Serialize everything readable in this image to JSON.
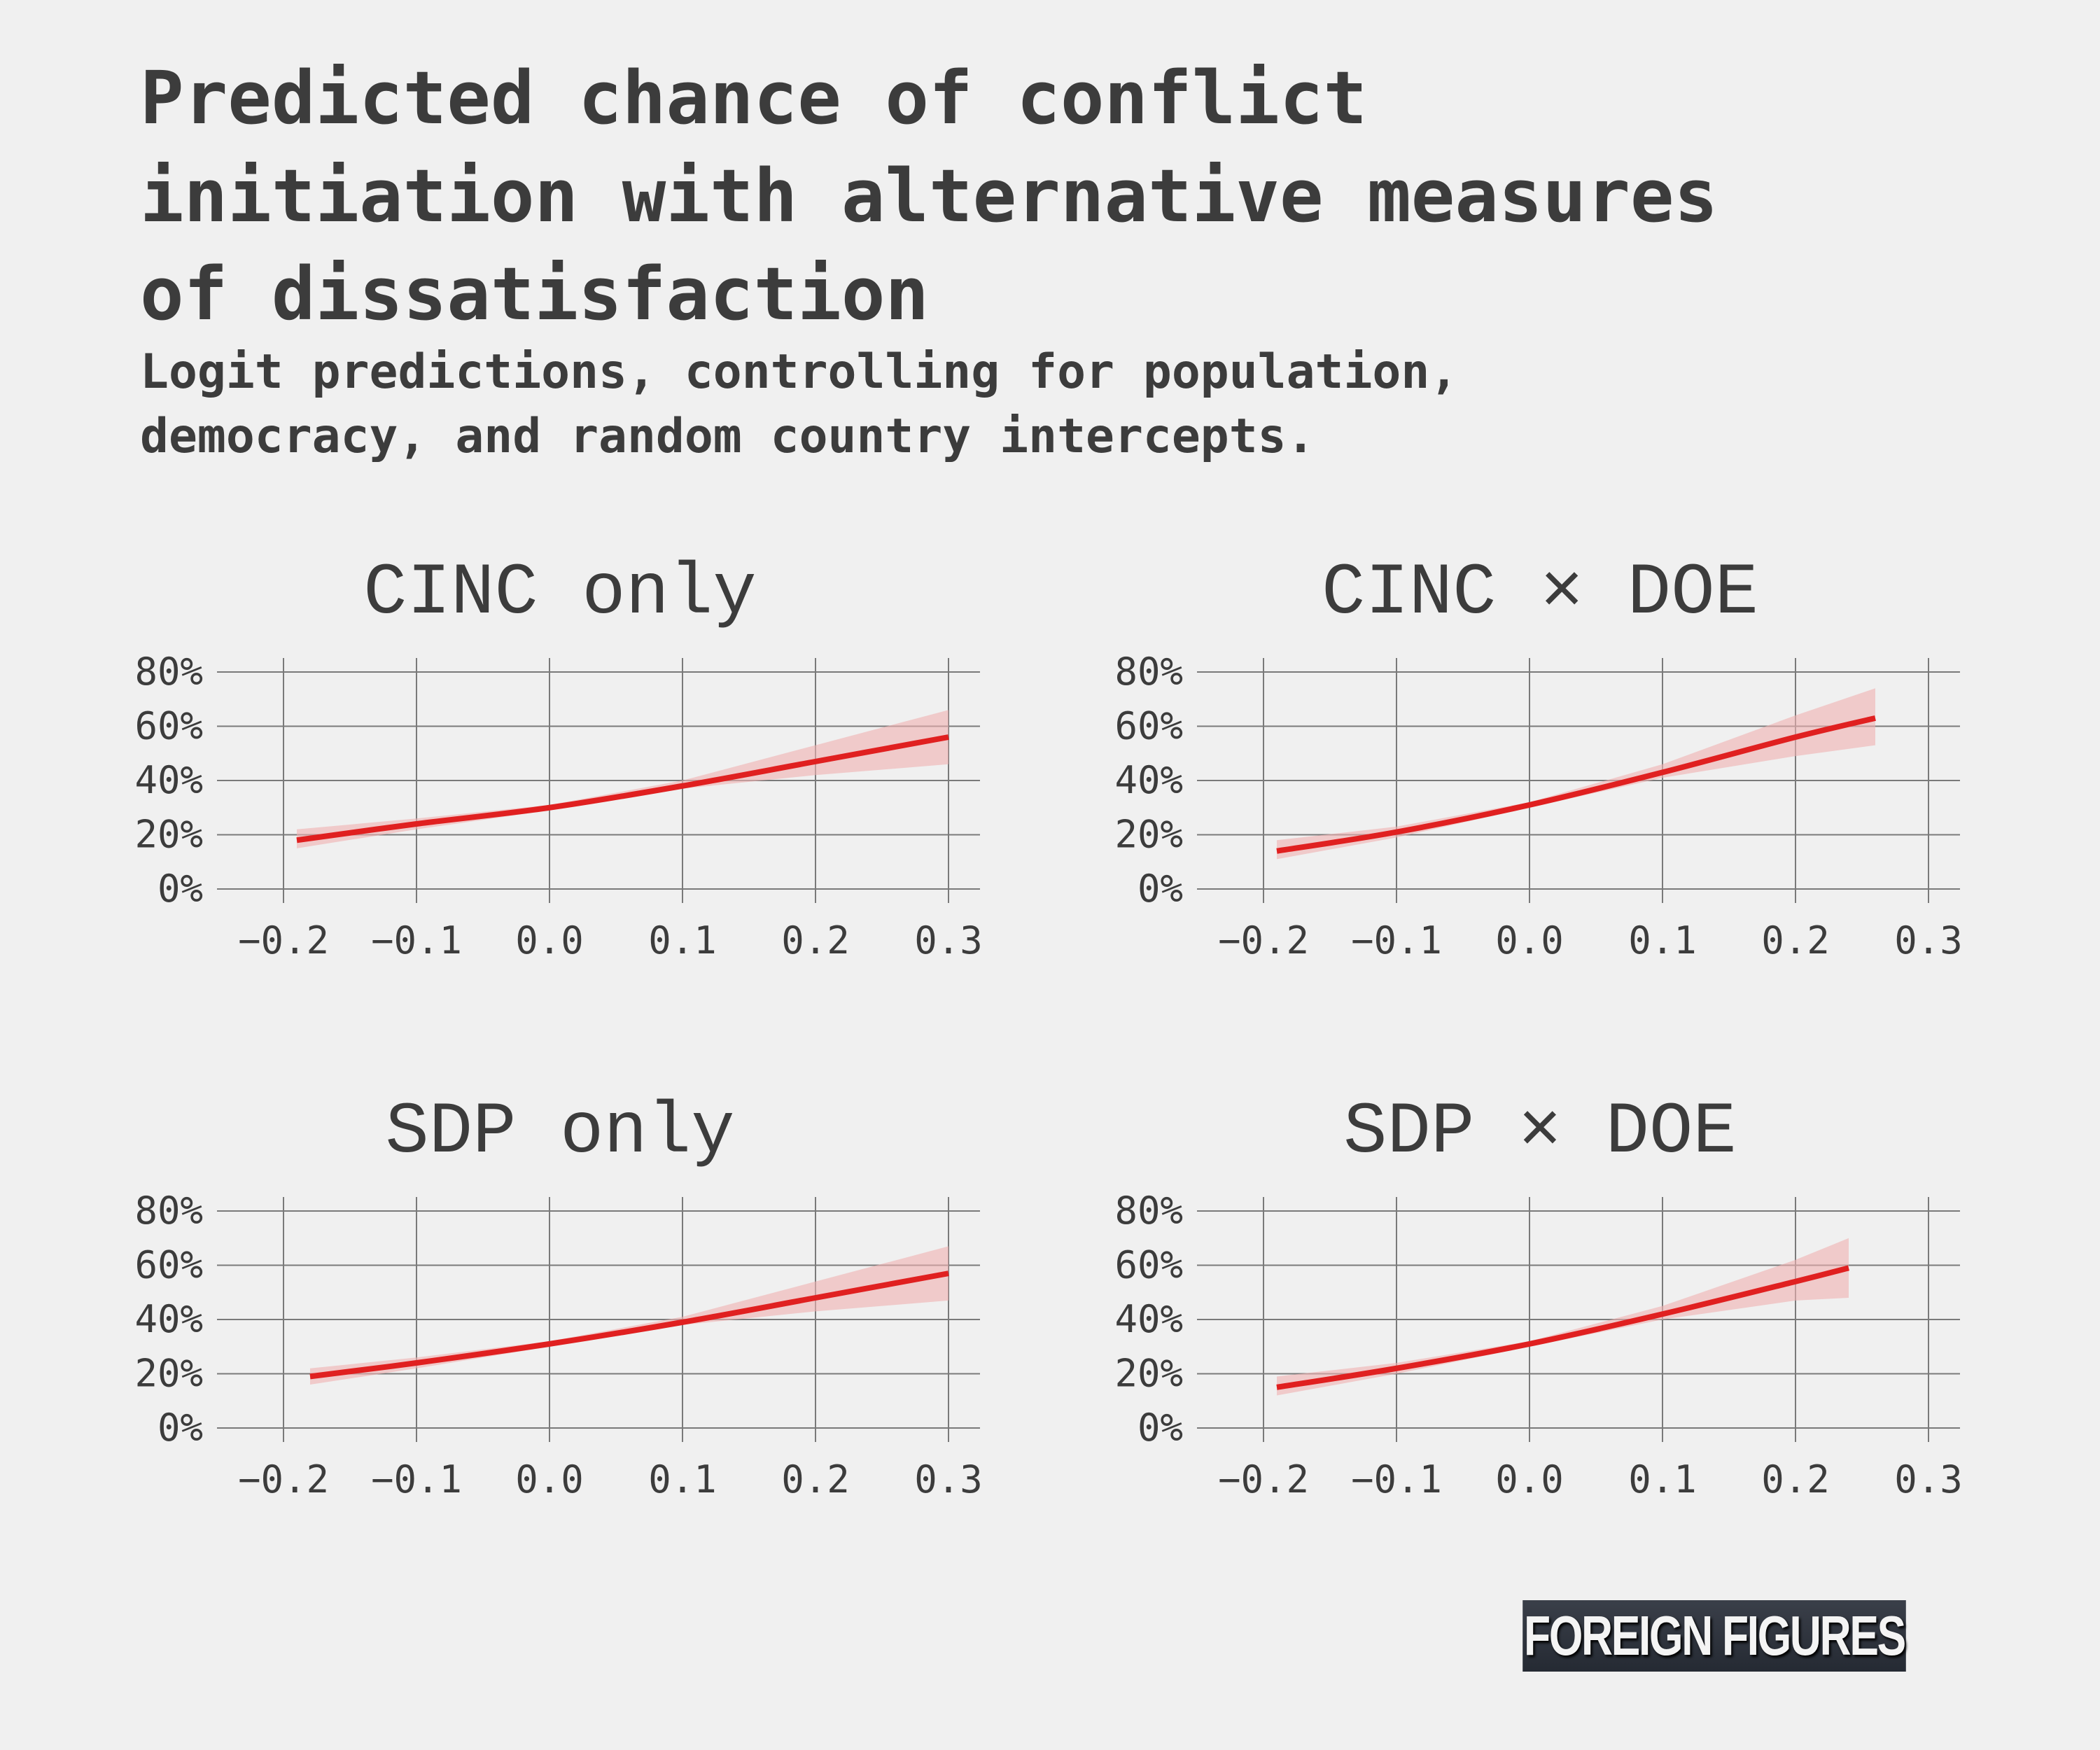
{
  "header": {
    "title": "Predicted chance of conflict\ninitiation with alternative measures\nof dissatisfaction",
    "subtitle": "Logit predictions, controlling for population,\ndemocracy, and random country intercepts."
  },
  "brand": {
    "label": "FOREIGN FIGURES"
  },
  "colors": {
    "line": "#e02020",
    "band": "#f0b0b0",
    "grid": "#7a7a7a",
    "text": "#3c3c3c",
    "background": "#f0f0f0"
  },
  "chart_data": [
    {
      "type": "line",
      "title": "CINC only",
      "xlim": [
        -0.2,
        0.3
      ],
      "ylim": [
        0,
        0.8
      ],
      "x_ticks": [
        "-0.2",
        "-0.1",
        "0.0",
        "0.1",
        "0.2",
        "0.3"
      ],
      "y_ticks": [
        "0%",
        "20%",
        "40%",
        "60%",
        "80%"
      ],
      "series": [
        {
          "x": [
            -0.19,
            -0.1,
            0.0,
            0.1,
            0.2,
            0.3
          ],
          "y": [
            0.18,
            0.24,
            0.3,
            0.38,
            0.47,
            0.56
          ],
          "lower": [
            0.15,
            0.22,
            0.29,
            0.37,
            0.42,
            0.46
          ],
          "upper": [
            0.22,
            0.26,
            0.31,
            0.4,
            0.53,
            0.66
          ]
        }
      ]
    },
    {
      "type": "line",
      "title": "CINC × DOE",
      "xlim": [
        -0.2,
        0.3
      ],
      "ylim": [
        0,
        0.8
      ],
      "x_ticks": [
        "-0.2",
        "-0.1",
        "0.0",
        "0.1",
        "0.2",
        "0.3"
      ],
      "y_ticks": [
        "0%",
        "20%",
        "40%",
        "60%",
        "80%"
      ],
      "series": [
        {
          "x": [
            -0.19,
            -0.1,
            0.0,
            0.1,
            0.2,
            0.26
          ],
          "y": [
            0.14,
            0.21,
            0.31,
            0.43,
            0.56,
            0.63
          ],
          "lower": [
            0.11,
            0.19,
            0.3,
            0.41,
            0.49,
            0.53
          ],
          "upper": [
            0.18,
            0.23,
            0.32,
            0.46,
            0.64,
            0.74
          ]
        }
      ]
    },
    {
      "type": "line",
      "title": "SDP only",
      "xlim": [
        -0.2,
        0.3
      ],
      "ylim": [
        0,
        0.8
      ],
      "x_ticks": [
        "-0.2",
        "-0.1",
        "0.0",
        "0.1",
        "0.2",
        "0.3"
      ],
      "y_ticks": [
        "0%",
        "20%",
        "40%",
        "60%",
        "80%"
      ],
      "series": [
        {
          "x": [
            -0.18,
            -0.1,
            0.0,
            0.1,
            0.2,
            0.3
          ],
          "y": [
            0.19,
            0.24,
            0.31,
            0.39,
            0.48,
            0.57
          ],
          "lower": [
            0.16,
            0.22,
            0.3,
            0.38,
            0.43,
            0.47
          ],
          "upper": [
            0.22,
            0.26,
            0.32,
            0.41,
            0.54,
            0.67
          ]
        }
      ]
    },
    {
      "type": "line",
      "title": "SDP × DOE",
      "xlim": [
        -0.2,
        0.3
      ],
      "ylim": [
        0,
        0.8
      ],
      "x_ticks": [
        "-0.2",
        "-0.1",
        "0.0",
        "0.1",
        "0.2",
        "0.3"
      ],
      "y_ticks": [
        "0%",
        "20%",
        "40%",
        "60%",
        "80%"
      ],
      "series": [
        {
          "x": [
            -0.19,
            -0.1,
            0.0,
            0.1,
            0.2,
            0.24
          ],
          "y": [
            0.15,
            0.22,
            0.31,
            0.42,
            0.54,
            0.59
          ],
          "lower": [
            0.12,
            0.2,
            0.3,
            0.4,
            0.47,
            0.48
          ],
          "upper": [
            0.19,
            0.24,
            0.32,
            0.45,
            0.62,
            0.7
          ]
        }
      ]
    }
  ]
}
